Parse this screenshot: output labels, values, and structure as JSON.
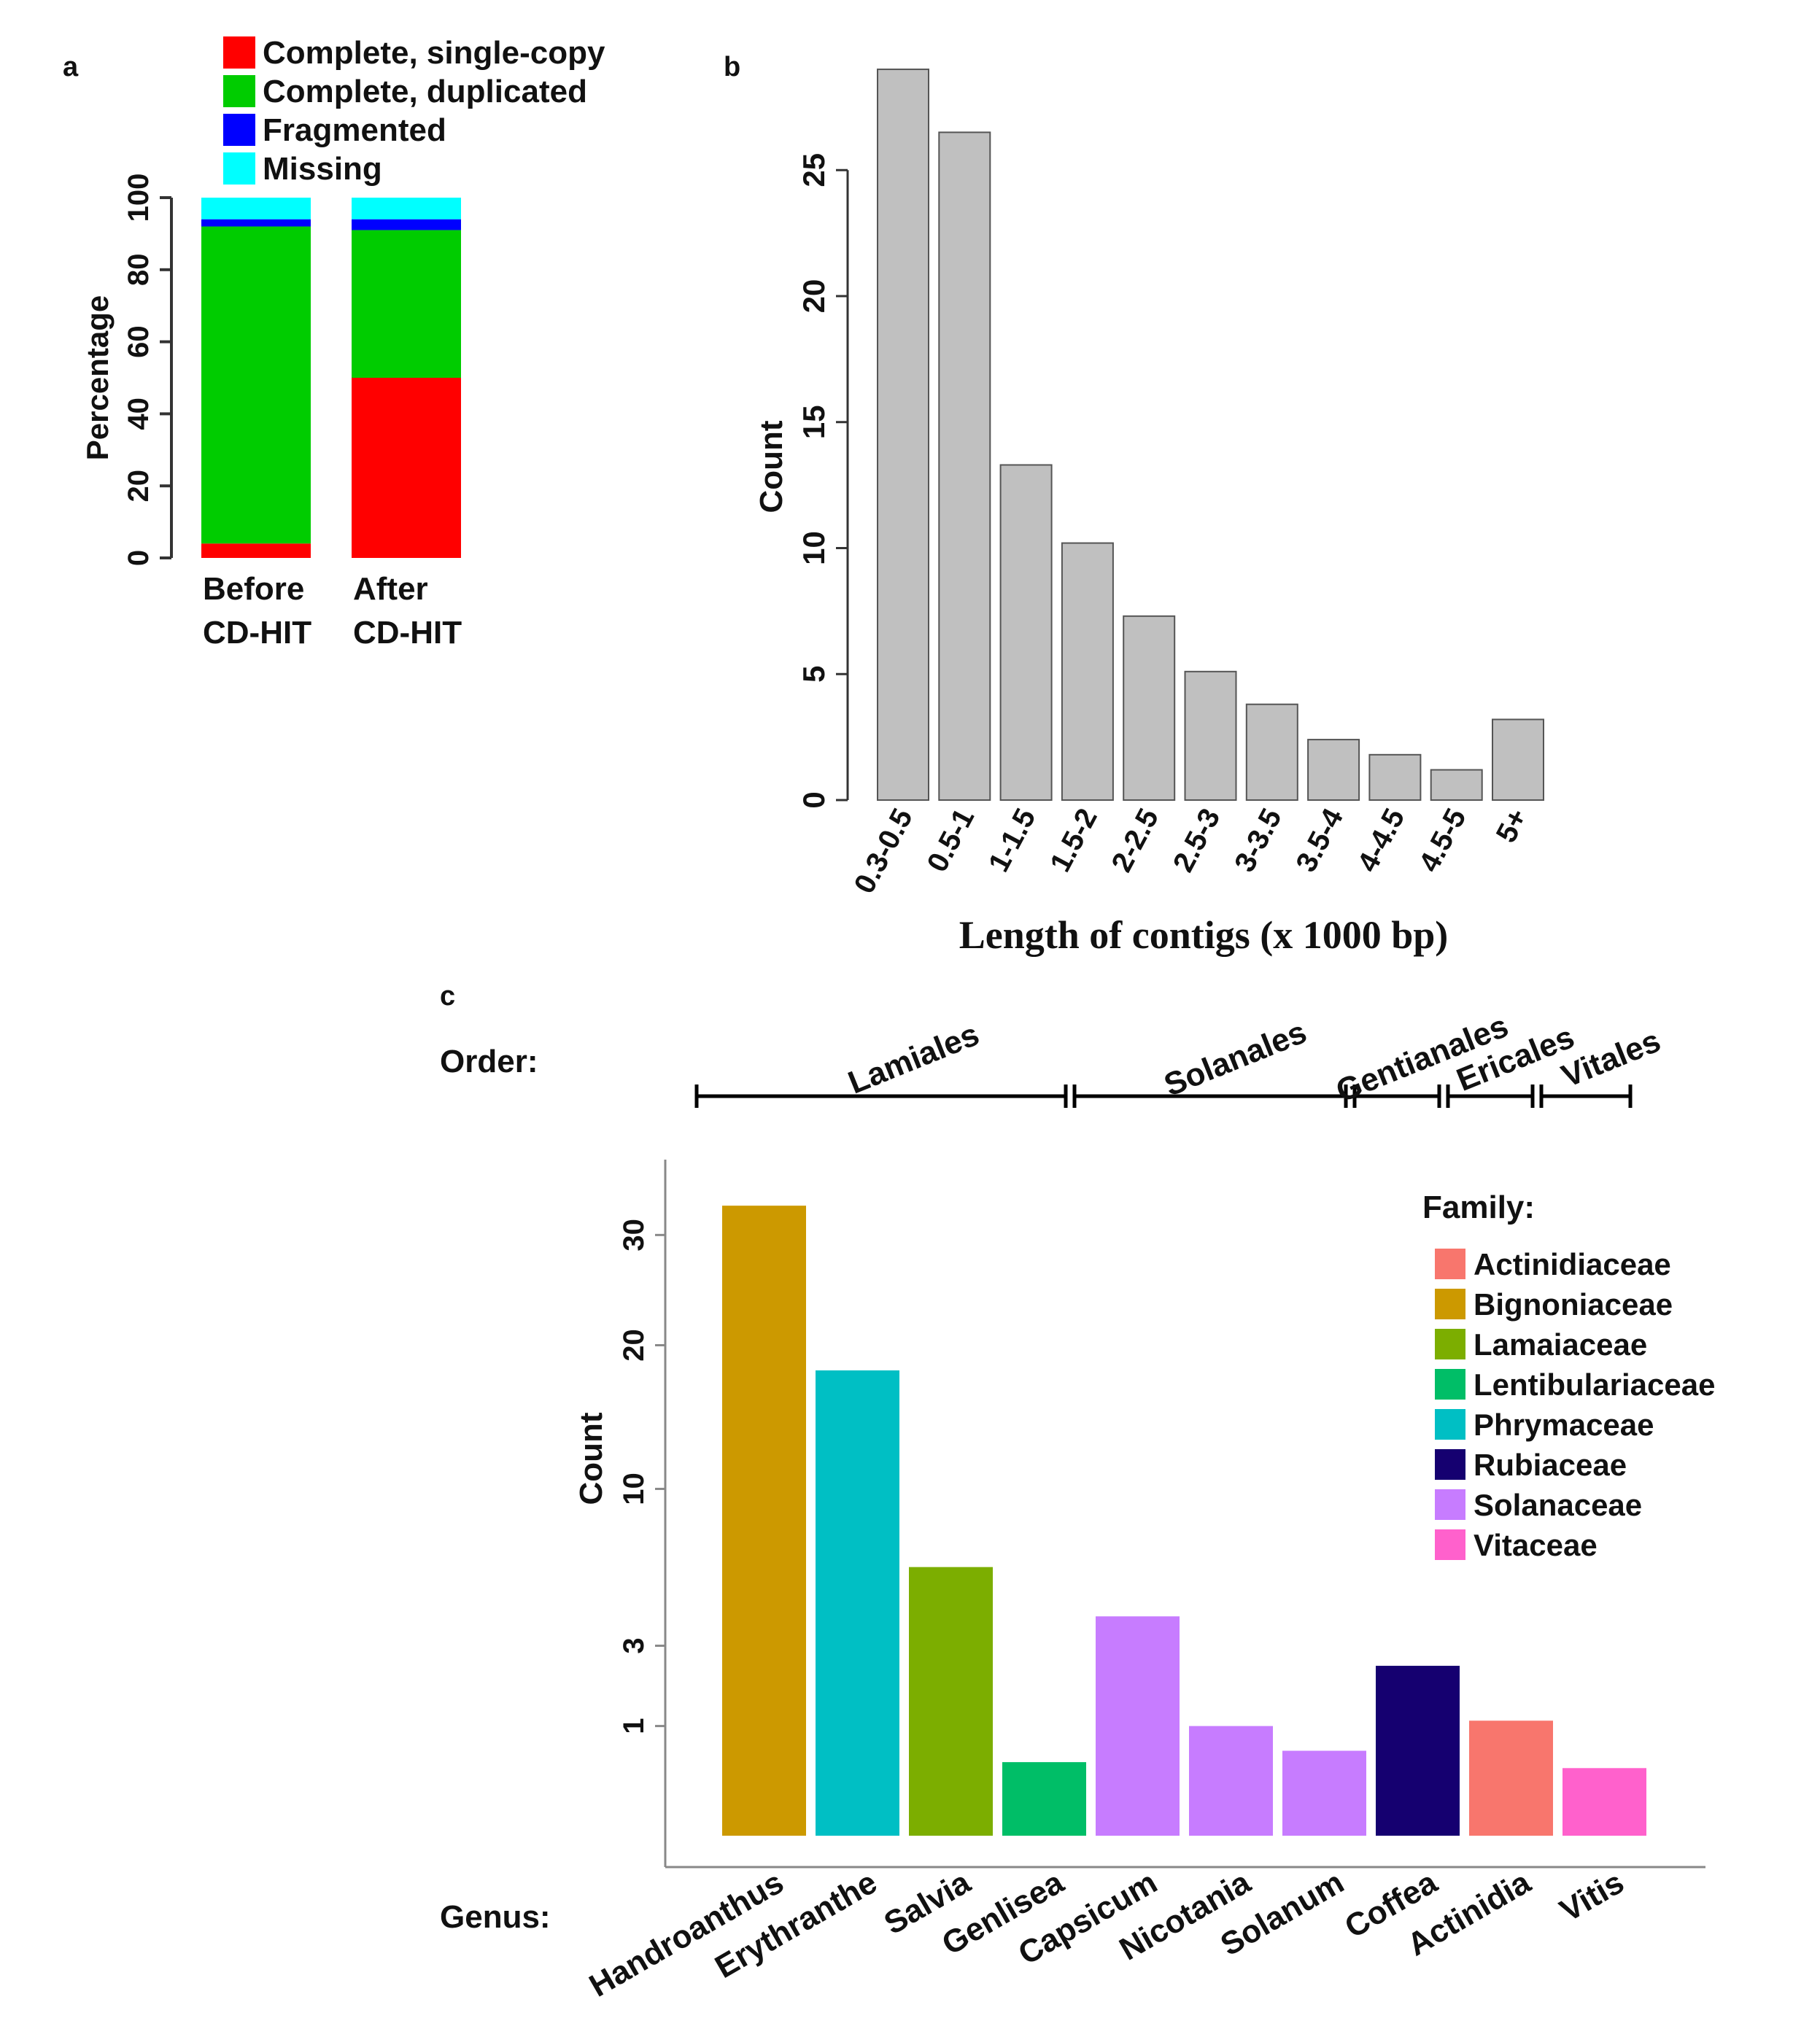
{
  "panels": {
    "a": "a",
    "b": "b",
    "c": "c"
  },
  "chart_data": [
    {
      "panel": "a",
      "type": "bar",
      "stacked": true,
      "ylabel": "Percentage",
      "ylim": [
        0,
        100
      ],
      "yticks": [
        0,
        20,
        40,
        60,
        80,
        100
      ],
      "categories": [
        "Before\nCD-HIT",
        "After\nCD-HIT"
      ],
      "category_lines": [
        [
          "Before",
          "CD-HIT"
        ],
        [
          "After",
          "CD-HIT"
        ]
      ],
      "legend_position": "top",
      "series": [
        {
          "name": "Complete, single-copy",
          "color": "#ff0000",
          "values": [
            4,
            50
          ]
        },
        {
          "name": "Complete, duplicated",
          "color": "#00cc00",
          "values": [
            88,
            41
          ]
        },
        {
          "name": "Fragmented",
          "color": "#0000ff",
          "values": [
            2,
            3
          ]
        },
        {
          "name": "Missing",
          "color": "#00ffff",
          "values": [
            6,
            6
          ]
        }
      ]
    },
    {
      "panel": "b",
      "type": "bar",
      "xlabel": "Length of contigs (x 1000 bp)",
      "ylabel": "Count",
      "ylim": [
        0,
        30
      ],
      "yticks": [
        0,
        5,
        10,
        15,
        20,
        25
      ],
      "bar_color": "#c0c0c0",
      "categories": [
        "0.3-0.5",
        "0.5-1",
        "1-1.5",
        "1.5-2",
        "2-2.5",
        "2.5-3",
        "3-3.5",
        "3.5-4",
        "4-4.5",
        "4.5-5",
        "5+"
      ],
      "values": [
        29,
        26.5,
        13.3,
        10.2,
        7.3,
        5.1,
        3.8,
        2.4,
        1.8,
        1.2,
        3.2
      ]
    },
    {
      "panel": "c",
      "type": "bar",
      "ylabel": "Count",
      "yscale": "sqrt",
      "y_axis_max": 38,
      "yticks": [
        1,
        3,
        10,
        20,
        30
      ],
      "order_label": "Order:",
      "genus_label": "Genus:",
      "family_legend_title": "Family:",
      "legend_position": "top-right",
      "orders": [
        {
          "name": "Lamiales",
          "from": 0,
          "to": 4
        },
        {
          "name": "Solanales",
          "from": 4,
          "to": 7
        },
        {
          "name": "Gentianales",
          "from": 7,
          "to": 8
        },
        {
          "name": "Ericales",
          "from": 8,
          "to": 9
        },
        {
          "name": "Vitales",
          "from": 9,
          "to": 10
        }
      ],
      "families": [
        {
          "name": "Actinidiaceae",
          "color": "#f8766d"
        },
        {
          "name": "Bignoniaceae",
          "color": "#cc9900"
        },
        {
          "name": "Lamaiaceae",
          "color": "#7cae00"
        },
        {
          "name": "Lentibulariaceae",
          "color": "#00be67"
        },
        {
          "name": "Phrymaceae",
          "color": "#00bfc4"
        },
        {
          "name": "Rubiaceae",
          "color": "#150070"
        },
        {
          "name": "Solanaceae",
          "color": "#c77cff"
        },
        {
          "name": "Vitaceae",
          "color": "#ff61cc"
        }
      ],
      "categories": [
        "Handroanthus",
        "Erythranthe",
        "Salvia",
        "Genlisea",
        "Capsicum",
        "Nicotania",
        "Solanum",
        "Coffea",
        "Actinidia",
        "Vitis"
      ],
      "genus_family": [
        "Bignoniaceae",
        "Phrymaceae",
        "Lamaiaceae",
        "Lentibulariaceae",
        "Solanaceae",
        "Solanaceae",
        "Solanaceae",
        "Rubiaceae",
        "Actinidiaceae",
        "Vitaceae"
      ],
      "values": [
        33,
        18,
        6,
        0.45,
        4,
        1,
        0.6,
        2.4,
        1.1,
        0.38
      ]
    }
  ]
}
